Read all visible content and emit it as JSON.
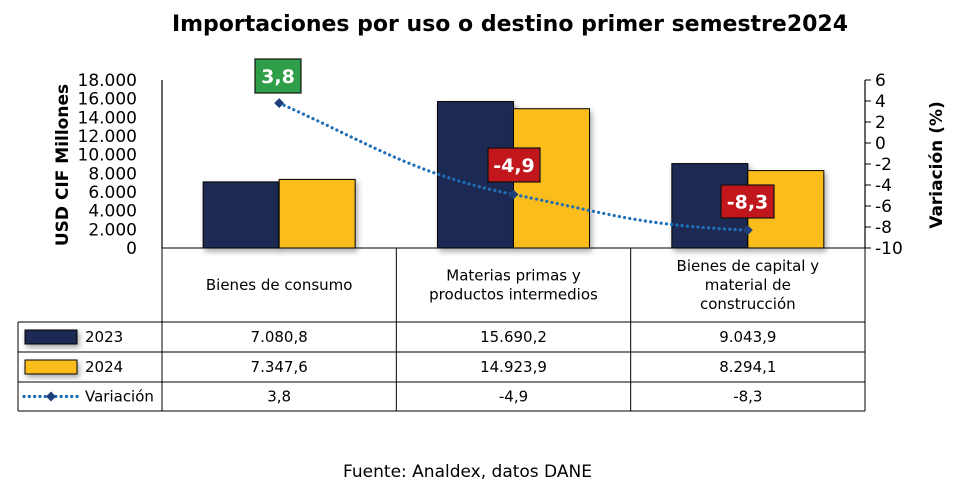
{
  "chart_data": {
    "type": "bar",
    "title": "Importaciones por uso o destino primer semestre2024",
    "ylabel": "USD CIF Millones",
    "y2label": "Variación (%)",
    "ylim": [
      0,
      18000
    ],
    "y2lim": [
      -10,
      6
    ],
    "yticks": [
      "18.000",
      "16.000",
      "14.000",
      "12.000",
      "10.000",
      "8.000",
      "6.000",
      "4.000",
      "2.000",
      "0"
    ],
    "y2ticks": [
      "6",
      "4",
      "2",
      "0",
      "-2",
      "-4",
      "-6",
      "-8",
      "-10"
    ],
    "categories": [
      [
        "Bienes de consumo"
      ],
      [
        "Materias primas y",
        "productos intermedios"
      ],
      [
        "Bienes de capital y",
        "material de",
        "construcción"
      ]
    ],
    "series": [
      {
        "name": "2023",
        "type": "bar",
        "color": "#1f2a52",
        "values": [
          7080.8,
          15690.2,
          9043.9
        ],
        "labels": [
          "7.080,8",
          "15.690,2",
          "9.043,9"
        ]
      },
      {
        "name": "2024",
        "type": "bar",
        "color": "#fbbd1c",
        "values": [
          7347.6,
          14923.9,
          8294.1
        ],
        "labels": [
          "7.347,6",
          "14.923,9",
          "8.294,1"
        ]
      },
      {
        "name": "Variación",
        "type": "line",
        "axis": "secondary",
        "color": "#1f6fb8",
        "values": [
          3.8,
          -4.9,
          -8.3
        ],
        "labels": [
          "3,8",
          "-4,9",
          "-8,3"
        ],
        "table_labels": [
          "3,8",
          "-4,9",
          "-8,3"
        ],
        "label_colors": [
          "#2f9e48",
          "#c0161c",
          "#c0161c"
        ]
      }
    ],
    "legend": "data-table"
  },
  "source": "Fuente: Analdex, datos DANE"
}
